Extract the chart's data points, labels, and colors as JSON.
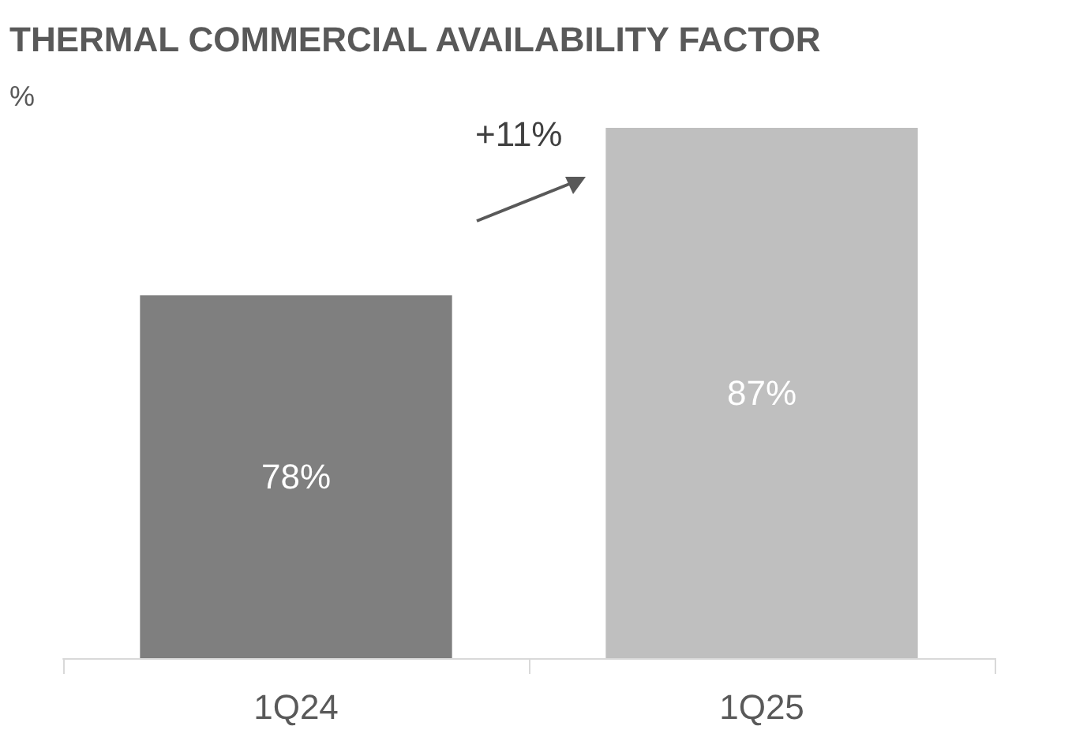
{
  "chart_data": {
    "type": "bar",
    "title": "THERMAL COMMERCIAL AVAILABILITY FACTOR",
    "ylabel": "%",
    "categories": [
      "1Q24",
      "1Q25"
    ],
    "values": [
      78,
      87
    ],
    "colors": [
      "#7f7f7f",
      "#bfbfbf"
    ],
    "value_labels": [
      "78%",
      "87%"
    ],
    "ylim": [
      58.5,
      87
    ],
    "tick_labels": "x",
    "annotations": [
      "+11%"
    ]
  }
}
